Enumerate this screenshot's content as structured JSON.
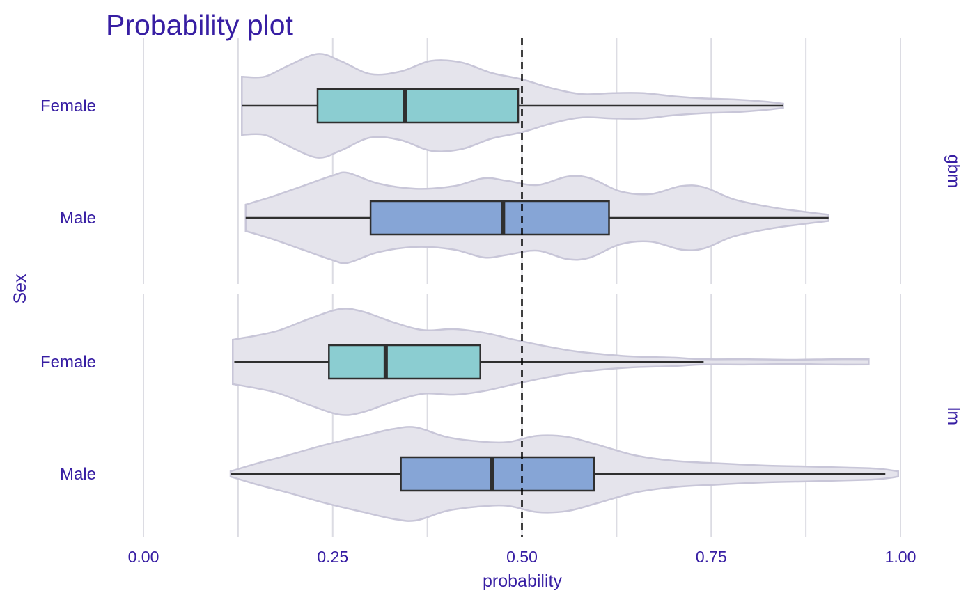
{
  "chart_data": {
    "type": "violin-boxplot",
    "title": "Probability plot",
    "xlabel": "probability",
    "ylabel": "Sex",
    "xlim": [
      0,
      1
    ],
    "x_ticks": [
      "0.00",
      "0.25",
      "0.50",
      "0.75",
      "1.00"
    ],
    "reference_line": 0.5,
    "facet_labels": [
      "gbm",
      "lm"
    ],
    "categories": [
      "Female",
      "Male"
    ],
    "colors": {
      "Female": "#8bcdd1",
      "Male": "#86a5d6",
      "violin_fill": "#e5e4ec",
      "violin_stroke": "#c8c6d8",
      "text": "#371ea3"
    },
    "panels": [
      {
        "facet": "gbm",
        "groups": [
          {
            "category": "Female",
            "whisker_low": 0.13,
            "q1": 0.23,
            "median": 0.345,
            "q3": 0.495,
            "whisker_high": 0.845,
            "violin_min": 0.13,
            "violin_max": 0.845,
            "density": [
              [
                0.13,
                0.55
              ],
              [
                0.16,
                0.55
              ],
              [
                0.19,
                0.75
              ],
              [
                0.23,
                0.98
              ],
              [
                0.26,
                0.85
              ],
              [
                0.3,
                0.6
              ],
              [
                0.34,
                0.65
              ],
              [
                0.38,
                0.85
              ],
              [
                0.42,
                0.82
              ],
              [
                0.46,
                0.62
              ],
              [
                0.5,
                0.5
              ],
              [
                0.54,
                0.33
              ],
              [
                0.58,
                0.22
              ],
              [
                0.62,
                0.24
              ],
              [
                0.66,
                0.24
              ],
              [
                0.7,
                0.18
              ],
              [
                0.74,
                0.14
              ],
              [
                0.78,
                0.12
              ],
              [
                0.82,
                0.08
              ],
              [
                0.845,
                0.04
              ]
            ]
          },
          {
            "category": "Male",
            "whisker_low": 0.135,
            "q1": 0.3,
            "median": 0.475,
            "q3": 0.615,
            "whisker_high": 0.905,
            "violin_min": 0.135,
            "violin_max": 0.905,
            "density": [
              [
                0.135,
                0.25
              ],
              [
                0.17,
                0.4
              ],
              [
                0.21,
                0.6
              ],
              [
                0.25,
                0.8
              ],
              [
                0.27,
                0.85
              ],
              [
                0.31,
                0.65
              ],
              [
                0.36,
                0.55
              ],
              [
                0.41,
                0.6
              ],
              [
                0.45,
                0.75
              ],
              [
                0.48,
                0.7
              ],
              [
                0.52,
                0.62
              ],
              [
                0.56,
                0.78
              ],
              [
                0.59,
                0.75
              ],
              [
                0.63,
                0.5
              ],
              [
                0.67,
                0.45
              ],
              [
                0.71,
                0.6
              ],
              [
                0.74,
                0.58
              ],
              [
                0.78,
                0.35
              ],
              [
                0.83,
                0.2
              ],
              [
                0.87,
                0.12
              ],
              [
                0.905,
                0.06
              ]
            ]
          }
        ]
      },
      {
        "facet": "lm",
        "groups": [
          {
            "category": "Female",
            "whisker_low": 0.12,
            "q1": 0.245,
            "median": 0.32,
            "q3": 0.445,
            "whisker_high": 0.74,
            "violin_min": 0.118,
            "violin_max": 0.958,
            "density": [
              [
                0.118,
                0.42
              ],
              [
                0.15,
                0.5
              ],
              [
                0.18,
                0.6
              ],
              [
                0.22,
                0.82
              ],
              [
                0.26,
                1.0
              ],
              [
                0.29,
                0.95
              ],
              [
                0.33,
                0.75
              ],
              [
                0.37,
                0.6
              ],
              [
                0.41,
                0.62
              ],
              [
                0.45,
                0.55
              ],
              [
                0.49,
                0.42
              ],
              [
                0.53,
                0.3
              ],
              [
                0.57,
                0.2
              ],
              [
                0.61,
                0.14
              ],
              [
                0.65,
                0.1
              ],
              [
                0.7,
                0.08
              ],
              [
                0.74,
                0.05
              ],
              [
                0.8,
                0.05
              ],
              [
                0.86,
                0.04
              ],
              [
                0.91,
                0.05
              ],
              [
                0.958,
                0.05
              ]
            ]
          },
          {
            "category": "Male",
            "whisker_low": 0.115,
            "q1": 0.34,
            "median": 0.46,
            "q3": 0.595,
            "whisker_high": 0.98,
            "violin_min": 0.115,
            "violin_max": 0.997,
            "density": [
              [
                0.115,
                0.05
              ],
              [
                0.15,
                0.2
              ],
              [
                0.19,
                0.35
              ],
              [
                0.24,
                0.55
              ],
              [
                0.29,
                0.72
              ],
              [
                0.33,
                0.85
              ],
              [
                0.36,
                0.88
              ],
              [
                0.4,
                0.7
              ],
              [
                0.44,
                0.62
              ],
              [
                0.48,
                0.6
              ],
              [
                0.52,
                0.72
              ],
              [
                0.56,
                0.7
              ],
              [
                0.6,
                0.55
              ],
              [
                0.65,
                0.35
              ],
              [
                0.7,
                0.25
              ],
              [
                0.76,
                0.2
              ],
              [
                0.82,
                0.16
              ],
              [
                0.88,
                0.14
              ],
              [
                0.93,
                0.12
              ],
              [
                0.97,
                0.1
              ],
              [
                0.997,
                0.05
              ]
            ]
          }
        ]
      }
    ]
  }
}
